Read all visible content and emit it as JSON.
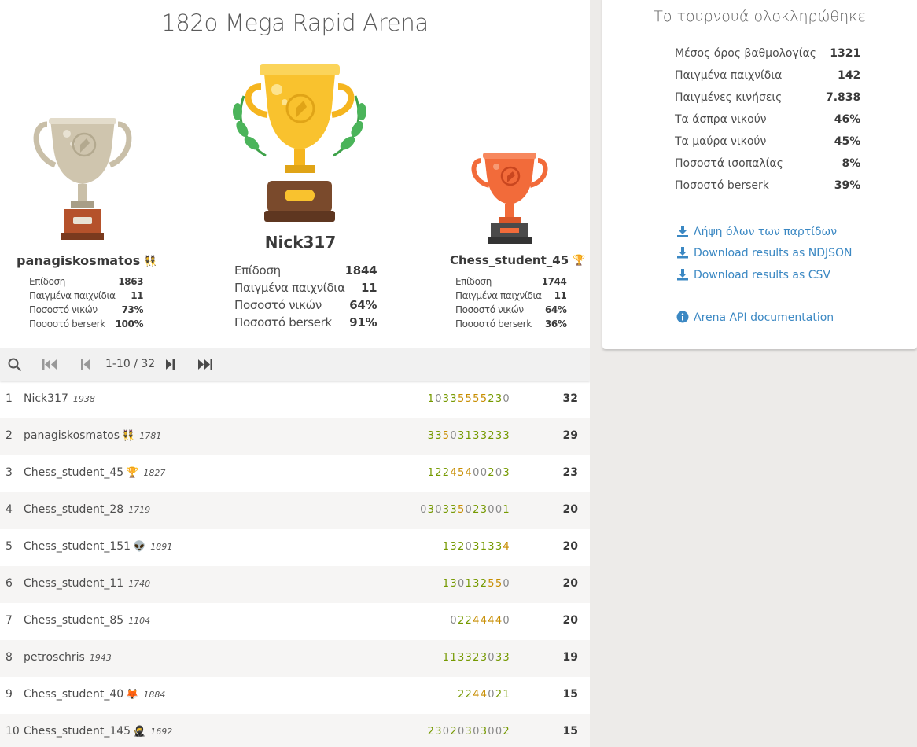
{
  "tournament": {
    "title": "182ο Mega Rapid Arena"
  },
  "podium": {
    "first": {
      "name": "Nick317",
      "badge": "",
      "stats": [
        {
          "label": "Επίδοση",
          "value": "1844"
        },
        {
          "label": "Παιγμένα παιχνίδια",
          "value": "11"
        },
        {
          "label": "Ποσοστό νικών",
          "value": "64%"
        },
        {
          "label": "Ποσοστό berserk",
          "value": "91%"
        }
      ]
    },
    "second": {
      "name": "panagiskosmatos",
      "badge": "👯",
      "stats": [
        {
          "label": "Επίδοση",
          "value": "1863"
        },
        {
          "label": "Παιγμένα παιχνίδια",
          "value": "11"
        },
        {
          "label": "Ποσοστό νικών",
          "value": "73%"
        },
        {
          "label": "Ποσοστό berserk",
          "value": "100%"
        }
      ]
    },
    "third": {
      "name": "Chess_student_45",
      "badge": "🏆",
      "stats": [
        {
          "label": "Επίδοση",
          "value": "1744"
        },
        {
          "label": "Παιγμένα παιχνίδια",
          "value": "11"
        },
        {
          "label": "Ποσοστό νικών",
          "value": "64%"
        },
        {
          "label": "Ποσοστό berserk",
          "value": "36%"
        }
      ]
    }
  },
  "pager": {
    "range": "1-10 / 32"
  },
  "standings": [
    {
      "rank": "1",
      "name": "Nick317",
      "flair": "",
      "rating": "1938",
      "sheet": "10335555230",
      "score": "32"
    },
    {
      "rank": "2",
      "name": "panagiskosmatos",
      "flair": "👯",
      "rating": "1781",
      "sheet": "33503133233",
      "score": "29"
    },
    {
      "rank": "3",
      "name": "Chess_student_45",
      "flair": "🏆",
      "rating": "1827",
      "sheet": "12245400203",
      "score": "23"
    },
    {
      "rank": "4",
      "name": "Chess_student_28",
      "flair": "",
      "rating": "1719",
      "sheet": "030335023001",
      "score": "20"
    },
    {
      "rank": "5",
      "name": "Chess_student_151",
      "flair": "👽",
      "rating": "1891",
      "sheet": "132031334",
      "score": "20"
    },
    {
      "rank": "6",
      "name": "Chess_student_11",
      "flair": "",
      "rating": "1740",
      "sheet": "130132550",
      "score": "20"
    },
    {
      "rank": "7",
      "name": "Chess_student_85",
      "flair": "",
      "rating": "1104",
      "sheet": "02244440",
      "score": "20"
    },
    {
      "rank": "8",
      "name": "petroschris",
      "flair": "",
      "rating": "1943",
      "sheet": "113323033",
      "score": "19"
    },
    {
      "rank": "9",
      "name": "Chess_student_40",
      "flair": "🦊",
      "rating": "1884",
      "sheet": "2244021",
      "score": "15"
    },
    {
      "rank": "10",
      "name": "Chess_student_145",
      "flair": "🥷",
      "rating": "1692",
      "sheet": "23020303002",
      "score": "15"
    }
  ],
  "summary": {
    "title": "Το τουρνουά ολοκληρώθηκε",
    "stats": [
      {
        "label": "Μέσος όρος βαθμολογίας",
        "value": "1321"
      },
      {
        "label": "Παιγμένα παιχνίδια",
        "value": "142"
      },
      {
        "label": "Παιγμένες κινήσεις",
        "value": "7.838"
      },
      {
        "label": "Τα άσπρα νικούν",
        "value": "46%"
      },
      {
        "label": "Τα μαύρα νικούν",
        "value": "45%"
      },
      {
        "label": "Ποσοστά ισοπαλίας",
        "value": "8%"
      },
      {
        "label": "Ποσοστό berserk",
        "value": "39%"
      }
    ],
    "links": {
      "download_all": "Λήψη όλων των παρτίδων",
      "ndjson": "Download results as NDJSON",
      "csv": "Download results as CSV",
      "api": "Arena API documentation"
    }
  },
  "colors": {
    "gold": "#f9c22e",
    "silver": "#c9bfa8",
    "bronze": "#f26b3a",
    "link": "#3b88c3",
    "win": "#759900",
    "streak": "#c78d00"
  }
}
